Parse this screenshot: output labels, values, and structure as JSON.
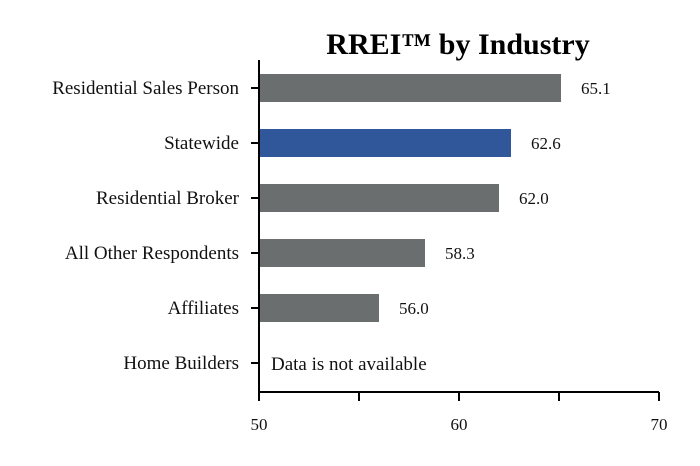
{
  "chart_data": {
    "type": "bar",
    "orientation": "horizontal",
    "title": "RREI™ by Industry",
    "categories": [
      "Residential Sales Person",
      "Statewide",
      "Residential Broker",
      "All Other Respondents",
      "Affiliates",
      "Home Builders"
    ],
    "values": [
      65.1,
      62.6,
      62.0,
      58.3,
      56.0,
      null
    ],
    "value_labels": [
      "65.1",
      "62.6",
      "62.0",
      "58.3",
      "56.0",
      ""
    ],
    "highlight_category": "Statewide",
    "missing_note": "Data is not available",
    "xlim": [
      50,
      70
    ],
    "xticks": [
      50,
      60,
      70
    ],
    "xtick_labels": [
      "50",
      "60",
      "70"
    ],
    "xlabel": "",
    "ylabel": "",
    "legend": "none",
    "colors": {
      "default": "#6b6e6e",
      "highlight": "#2f579a"
    }
  }
}
